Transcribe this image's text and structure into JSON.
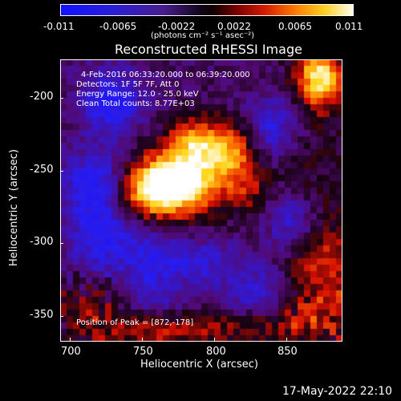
{
  "colorbar": {
    "tick_labels": [
      "-0.011",
      "-0.0065",
      "-0.0022",
      "0.0022",
      "0.0065",
      "0.011"
    ],
    "unit_label": "(photons cm⁻² s⁻¹ asec⁻²)"
  },
  "plot": {
    "title": "Reconstructed RHESSI Image",
    "x_axis_label": "Heliocentric X (arcsec)",
    "y_axis_label": "Heliocentric Y (arcsec)",
    "x_ticks": [
      "700",
      "750",
      "800",
      "850"
    ],
    "y_ticks": [
      "-200",
      "-250",
      "-300",
      "-350"
    ],
    "overlay_lines": [
      "4-Feb-2016 06:33:20.000 to 06:39:20.000",
      "Detectors: 1F 5F 7F, Att 0",
      "Energy Range: 12.0 - 25.0 keV",
      "Clean     Total counts: 8.77E+03"
    ],
    "peak_text": "Position of Peak = [872,-178]"
  },
  "footer": {
    "timestamp": "17-May-2022 22:10"
  },
  "colors": {
    "background": "#000000",
    "foreground": "#ffffff"
  }
}
